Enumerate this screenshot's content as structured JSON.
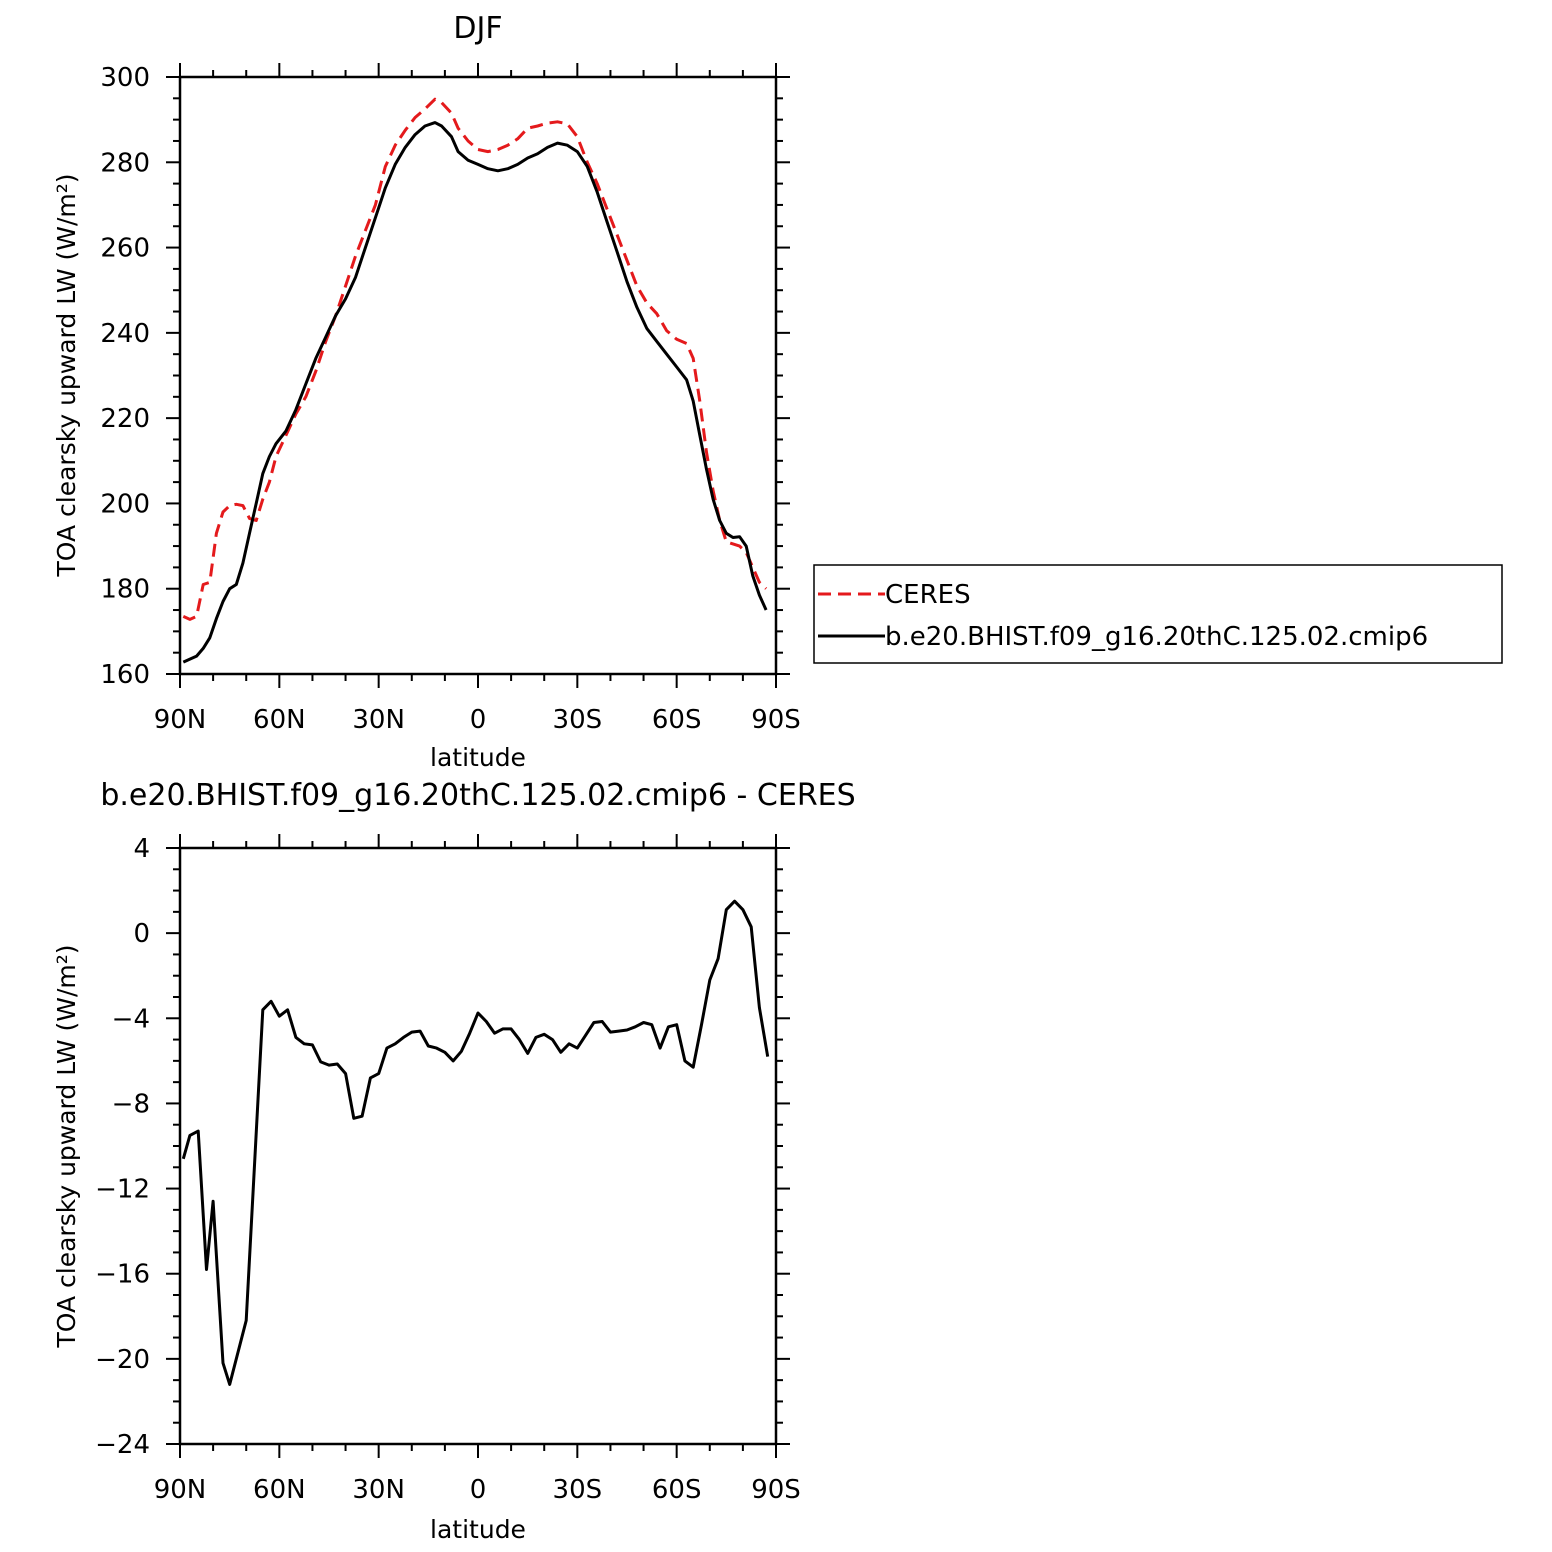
{
  "chart_data": [
    {
      "type": "line",
      "title": "DJF",
      "xlabel": "latitude",
      "ylabel": "TOA clearsky upward LW (W/m²)",
      "xlim": [
        90,
        -90
      ],
      "ylim": [
        160,
        300
      ],
      "x_ticks": [
        90,
        60,
        30,
        0,
        -30,
        -60,
        -90
      ],
      "x_tick_labels": [
        "90N",
        "60N",
        "30N",
        "0",
        "30S",
        "60S",
        "90S"
      ],
      "y_ticks": [
        160,
        180,
        200,
        220,
        240,
        260,
        280,
        300
      ],
      "y_tick_labels": [
        "160",
        "180",
        "200",
        "220",
        "240",
        "260",
        "280",
        "300"
      ],
      "legend_position": "right",
      "series": [
        {
          "name": "CERES",
          "color": "#e41a1c",
          "style": "dashed",
          "points": [
            [
              89,
              173.5
            ],
            [
              87,
              172.8
            ],
            [
              85,
              173.5
            ],
            [
              83,
              181
            ],
            [
              81,
              181.5
            ],
            [
              79,
              193
            ],
            [
              77,
              198
            ],
            [
              75,
              199.5
            ],
            [
              73,
              199.8
            ],
            [
              71,
              199.5
            ],
            [
              69,
              196.5
            ],
            [
              67,
              196
            ],
            [
              65,
              201
            ],
            [
              63,
              205
            ],
            [
              61,
              211
            ],
            [
              58,
              216
            ],
            [
              55,
              221
            ],
            [
              52,
              225
            ],
            [
              49,
              231
            ],
            [
              46,
              238
            ],
            [
              43,
              244
            ],
            [
              40,
              251
            ],
            [
              37,
              258
            ],
            [
              34,
              264
            ],
            [
              31,
              270
            ],
            [
              28,
              279
            ],
            [
              25,
              284
            ],
            [
              22,
              287.5
            ],
            [
              19,
              290.5
            ],
            [
              16,
              292.5
            ],
            [
              13,
              294.8
            ],
            [
              11,
              294
            ],
            [
              8,
              291.5
            ],
            [
              6,
              288
            ],
            [
              3,
              285
            ],
            [
              0,
              283
            ],
            [
              -3,
              282.5
            ],
            [
              -6,
              283
            ],
            [
              -9,
              284
            ],
            [
              -12,
              285.5
            ],
            [
              -15,
              288
            ],
            [
              -18,
              288.5
            ],
            [
              -21,
              289.2
            ],
            [
              -24,
              289.5
            ],
            [
              -27,
              289
            ],
            [
              -30,
              286
            ],
            [
              -33,
              280
            ],
            [
              -36,
              275
            ],
            [
              -39,
              269
            ],
            [
              -42,
              263
            ],
            [
              -45,
              257
            ],
            [
              -48,
              251
            ],
            [
              -51,
              247
            ],
            [
              -54,
              244.5
            ],
            [
              -57,
              240.5
            ],
            [
              -60,
              238.5
            ],
            [
              -63,
              237.5
            ],
            [
              -65,
              234
            ],
            [
              -67,
              224
            ],
            [
              -69,
              212
            ],
            [
              -71,
              203
            ],
            [
              -73,
              196
            ],
            [
              -75,
              191
            ],
            [
              -77,
              190.5
            ],
            [
              -79,
              190
            ],
            [
              -81,
              188.5
            ],
            [
              -83,
              185
            ],
            [
              -85,
              181.5
            ],
            [
              -87,
              180
            ]
          ]
        },
        {
          "name": "b.e20.BHIST.f09_g16.20thC.125.02.cmip6",
          "color": "#000000",
          "style": "solid",
          "points": [
            [
              89,
              162.8
            ],
            [
              87,
              163.5
            ],
            [
              85,
              164.2
            ],
            [
              83,
              166
            ],
            [
              81,
              168.5
            ],
            [
              79,
              173
            ],
            [
              77,
              177
            ],
            [
              75,
              180
            ],
            [
              73,
              181
            ],
            [
              71,
              186
            ],
            [
              69,
              193
            ],
            [
              67,
              200
            ],
            [
              65,
              207
            ],
            [
              63,
              211
            ],
            [
              61,
              214
            ],
            [
              58,
              217
            ],
            [
              55,
              222
            ],
            [
              52,
              228
            ],
            [
              49,
              234
            ],
            [
              46,
              239
            ],
            [
              43,
              244
            ],
            [
              40,
              248
            ],
            [
              37,
              253
            ],
            [
              34,
              260
            ],
            [
              31,
              267
            ],
            [
              28,
              274
            ],
            [
              25,
              279.5
            ],
            [
              22,
              283.5
            ],
            [
              19,
              286.5
            ],
            [
              16,
              288.5
            ],
            [
              13,
              289.3
            ],
            [
              11,
              288.5
            ],
            [
              8,
              286
            ],
            [
              6,
              282.5
            ],
            [
              3,
              280.5
            ],
            [
              0,
              279.5
            ],
            [
              -3,
              278.5
            ],
            [
              -6,
              278
            ],
            [
              -9,
              278.5
            ],
            [
              -12,
              279.5
            ],
            [
              -15,
              281
            ],
            [
              -18,
              282
            ],
            [
              -21,
              283.5
            ],
            [
              -24,
              284.5
            ],
            [
              -27,
              284
            ],
            [
              -30,
              282.5
            ],
            [
              -33,
              279
            ],
            [
              -36,
              273
            ],
            [
              -39,
              266
            ],
            [
              -42,
              259
            ],
            [
              -45,
              252
            ],
            [
              -48,
              246
            ],
            [
              -51,
              241
            ],
            [
              -54,
              238
            ],
            [
              -57,
              235
            ],
            [
              -60,
              232
            ],
            [
              -63,
              229
            ],
            [
              -65,
              224
            ],
            [
              -67,
              216
            ],
            [
              -69,
              208
            ],
            [
              -71,
              201
            ],
            [
              -73,
              196
            ],
            [
              -75,
              193
            ],
            [
              -77,
              192
            ],
            [
              -79,
              192.2
            ],
            [
              -81,
              190
            ],
            [
              -83,
              183
            ],
            [
              -85,
              178.5
            ],
            [
              -87,
              175
            ]
          ]
        }
      ]
    },
    {
      "type": "line",
      "title": "b.e20.BHIST.f09_g16.20thC.125.02.cmip6 - CERES",
      "xlabel": "latitude",
      "ylabel": "TOA clearsky upward LW (W/m²)",
      "xlim": [
        90,
        -90
      ],
      "ylim": [
        -24,
        4
      ],
      "x_ticks": [
        90,
        60,
        30,
        0,
        -30,
        -60,
        -90
      ],
      "x_tick_labels": [
        "90N",
        "60N",
        "30N",
        "0",
        "30S",
        "60S",
        "90S"
      ],
      "y_ticks": [
        -24,
        -20,
        -16,
        -12,
        -8,
        -4,
        0,
        4
      ],
      "y_tick_labels": [
        "−24",
        "−20",
        "−16",
        "−12",
        "−8",
        "−4",
        "0",
        "4"
      ],
      "series": [
        {
          "color": "#000000",
          "style": "solid",
          "points": [
            [
              89,
              -10.6
            ],
            [
              87,
              -9.5
            ],
            [
              84.5,
              -9.3
            ],
            [
              82,
              -15.8
            ],
            [
              80,
              -12.6
            ],
            [
              77,
              -20.2
            ],
            [
              75,
              -21.2
            ],
            [
              70,
              -18.2
            ],
            [
              65,
              -3.6
            ],
            [
              62.5,
              -3.2
            ],
            [
              60,
              -3.9
            ],
            [
              57.5,
              -3.6
            ],
            [
              55,
              -4.9
            ],
            [
              52.5,
              -5.2
            ],
            [
              50,
              -5.25
            ],
            [
              47.5,
              -6.05
            ],
            [
              45,
              -6.2
            ],
            [
              42.5,
              -6.15
            ],
            [
              40,
              -6.6
            ],
            [
              37.5,
              -8.7
            ],
            [
              35,
              -8.6
            ],
            [
              32.5,
              -6.8
            ],
            [
              30,
              -6.6
            ],
            [
              27.5,
              -5.4
            ],
            [
              25,
              -5.2
            ],
            [
              22.5,
              -4.9
            ],
            [
              20,
              -4.65
            ],
            [
              17.5,
              -4.6
            ],
            [
              15,
              -5.3
            ],
            [
              12.5,
              -5.4
            ],
            [
              10,
              -5.6
            ],
            [
              7.5,
              -6.0
            ],
            [
              5,
              -5.55
            ],
            [
              2.5,
              -4.7
            ],
            [
              0,
              -3.75
            ],
            [
              -2.5,
              -4.15
            ],
            [
              -5,
              -4.7
            ],
            [
              -7.5,
              -4.5
            ],
            [
              -10,
              -4.5
            ],
            [
              -12.5,
              -5.0
            ],
            [
              -15,
              -5.65
            ],
            [
              -17.5,
              -4.9
            ],
            [
              -20,
              -4.75
            ],
            [
              -22.5,
              -5.0
            ],
            [
              -25,
              -5.6
            ],
            [
              -27.5,
              -5.2
            ],
            [
              -30,
              -5.4
            ],
            [
              -32.5,
              -4.8
            ],
            [
              -35,
              -4.2
            ],
            [
              -37.5,
              -4.15
            ],
            [
              -40,
              -4.65
            ],
            [
              -42.5,
              -4.6
            ],
            [
              -45,
              -4.55
            ],
            [
              -47.5,
              -4.4
            ],
            [
              -50,
              -4.2
            ],
            [
              -52.5,
              -4.3
            ],
            [
              -55,
              -5.4
            ],
            [
              -57.5,
              -4.4
            ],
            [
              -60,
              -4.3
            ],
            [
              -62.5,
              -6.0
            ],
            [
              -65,
              -6.3
            ],
            [
              -67.5,
              -4.3
            ],
            [
              -70,
              -2.2
            ],
            [
              -72.5,
              -1.2
            ],
            [
              -75,
              1.1
            ],
            [
              -77.5,
              1.5
            ],
            [
              -80,
              1.1
            ],
            [
              -82.5,
              0.3
            ],
            [
              -85,
              -3.5
            ],
            [
              -87.5,
              -5.8
            ]
          ]
        }
      ]
    }
  ]
}
